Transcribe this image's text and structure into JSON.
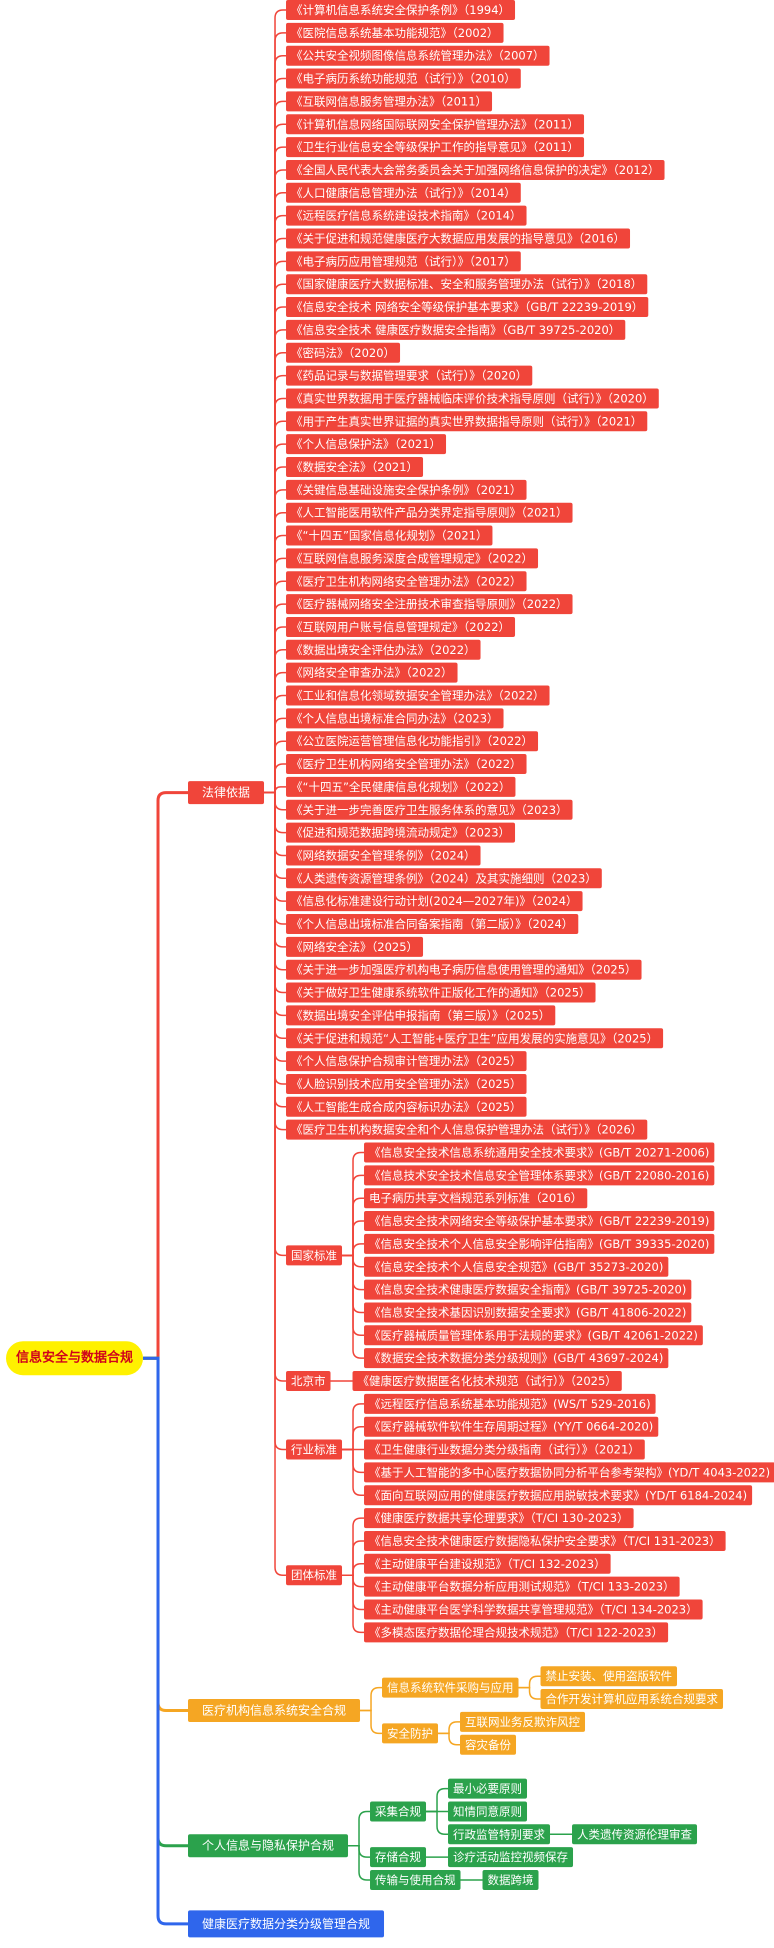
{
  "root": {
    "label": "信息安全与数据合规",
    "children": [
      {
        "label": "法律依据",
        "children": [
          {
            "label": "《计算机信息系统安全保护条例》（1994）"
          },
          {
            "label": "《医院信息系统基本功能规范》（2002）"
          },
          {
            "label": "《公共安全视频图像信息系统管理办法》（2007）"
          },
          {
            "label": "《电子病历系统功能规范（试行）》（2010）"
          },
          {
            "label": "《互联网信息服务管理办法》（2011）"
          },
          {
            "label": "《计算机信息网络国际联网安全保护管理办法》（2011）"
          },
          {
            "label": "《卫生行业信息安全等级保护工作的指导意见》（2011）"
          },
          {
            "label": "《全国人民代表大会常务委员会关于加强网络信息保护的决定》（2012）"
          },
          {
            "label": "《人口健康信息管理办法（试行）》（2014）"
          },
          {
            "label": "《远程医疗信息系统建设技术指南》（2014）"
          },
          {
            "label": "《关于促进和规范健康医疗大数据应用发展的指导意见》（2016）"
          },
          {
            "label": "《电子病历应用管理规范（试行）》（2017）"
          },
          {
            "label": "《国家健康医疗大数据标准、安全和服务管理办法（试行）》（2018）"
          },
          {
            "label": "《信息安全技术 网络安全等级保护基本要求》（GB/T 22239-2019）"
          },
          {
            "label": "《信息安全技术 健康医疗数据安全指南》（GB/T 39725-2020）"
          },
          {
            "label": "《密码法》（2020）"
          },
          {
            "label": "《药品记录与数据管理要求（试行）》（2020）"
          },
          {
            "label": "《真实世界数据用于医疗器械临床评价技术指导原则（试行）》（2020）"
          },
          {
            "label": "《用于产生真实世界证据的真实世界数据指导原则（试行）》（2021）"
          },
          {
            "label": "《个人信息保护法》（2021）"
          },
          {
            "label": "《数据安全法》（2021）"
          },
          {
            "label": "《关键信息基础设施安全保护条例》（2021）"
          },
          {
            "label": "《人工智能医用软件产品分类界定指导原则》（2021）"
          },
          {
            "label": "《“十四五”国家信息化规划》（2021）"
          },
          {
            "label": "《互联网信息服务深度合成管理规定》（2022）"
          },
          {
            "label": "《医疗卫生机构网络安全管理办法》（2022）"
          },
          {
            "label": "《医疗器械网络安全注册技术审查指导原则》（2022）"
          },
          {
            "label": "《互联网用户账号信息管理规定》（2022）"
          },
          {
            "label": "《数据出境安全评估办法》（2022）"
          },
          {
            "label": "《网络安全审查办法》（2022）"
          },
          {
            "label": "《工业和信息化领域数据安全管理办法》（2022）"
          },
          {
            "label": "《个人信息出境标准合同办法》（2023）"
          },
          {
            "label": "《公立医院运营管理信息化功能指引》（2022）"
          },
          {
            "label": "《医疗卫生机构网络安全管理办法》（2022）"
          },
          {
            "label": "《“十四五”全民健康信息化规划》（2022）"
          },
          {
            "label": "《关于进一步完善医疗卫生服务体系的意见》（2023）"
          },
          {
            "label": "《促进和规范数据跨境流动规定》（2023）"
          },
          {
            "label": "《网络数据安全管理条例》（2024）"
          },
          {
            "label": "《人类遗传资源管理条例》（2024）及其实施细则（2023）"
          },
          {
            "label": "《信息化标准建设行动计划(2024—2027年)》（2024）"
          },
          {
            "label": "《个人信息出境标准合同备案指南（第二版）》（2024）"
          },
          {
            "label": "《网络安全法》（2025）"
          },
          {
            "label": "《关于进一步加强医疗机构电子病历信息使用管理的通知》（2025）"
          },
          {
            "label": "《关于做好卫生健康系统软件正版化工作的通知》（2025）"
          },
          {
            "label": "《数据出境安全评估申报指南（第三版）》（2025）"
          },
          {
            "label": "《关于促进和规范“人工智能+医疗卫生”应用发展的实施意见》（2025）"
          },
          {
            "label": "《个人信息保护合规审计管理办法》（2025）"
          },
          {
            "label": "《人脸识别技术应用安全管理办法》（2025）"
          },
          {
            "label": "《人工智能生成合成内容标识办法》（2025）"
          },
          {
            "label": "《医疗卫生机构数据安全和个人信息保护管理办法（试行）》（2026）"
          },
          {
            "label": "国家标准",
            "children": [
              {
                "label": "《信息安全技术信息系统通用安全技术要求》(GB/T 20271-2006)"
              },
              {
                "label": "《信息技术安全技术信息安全管理体系要求》(GB/T 22080-2016)"
              },
              {
                "label": "电子病历共享文档规范系列标准（2016）"
              },
              {
                "label": "《信息安全技术网络安全等级保护基本要求》(GB/T 22239-2019)"
              },
              {
                "label": "《信息安全技术个人信息安全影响评估指南》(GB/T 39335-2020)"
              },
              {
                "label": "《信息安全技术个人信息安全规范》(GB/T 35273-2020)"
              },
              {
                "label": "《信息安全技术健康医疗数据安全指南》(GB/T 39725-2020)"
              },
              {
                "label": "《信息安全技术基因识别数据安全要求》(GB/T 41806-2022)"
              },
              {
                "label": "《医疗器械质量管理体系用于法规的要求》(GB/T 42061-2022)"
              },
              {
                "label": "《数据安全技术数据分类分级规则》(GB/T 43697-2024)"
              }
            ]
          },
          {
            "label": "北京市",
            "children": [
              {
                "label": "《健康医疗数据匿名化技术规范（试行）》（2025）"
              }
            ]
          },
          {
            "label": "行业标准",
            "children": [
              {
                "label": "《远程医疗信息系统基本功能规范》(WS/T 529-2016)"
              },
              {
                "label": "《医疗器械软件软件生存周期过程》(YY/T 0664-2020)"
              },
              {
                "label": "《卫生健康行业数据分类分级指南（试行）》（2021）"
              },
              {
                "label": "《基于人工智能的多中心医疗数据协同分析平台参考架构》(YD/T 4043-2022)"
              },
              {
                "label": "《面向互联网应用的健康医疗数据应用脱敏技术要求》(YD/T 6184-2024)"
              }
            ]
          },
          {
            "label": "团体标准",
            "children": [
              {
                "label": "《健康医疗数据共享伦理要求》（T/CI 130-2023）"
              },
              {
                "label": "《信息安全技术健康医疗数据隐私保护安全要求》（T/CI 131-2023）"
              },
              {
                "label": "《主动健康平台建设规范》（T/CI 132-2023）"
              },
              {
                "label": "《主动健康平台数据分析应用测试规范》（T/CI 133-2023）"
              },
              {
                "label": "《主动健康平台医学科学数据共享管理规范》（T/CI 134-2023）"
              },
              {
                "label": "《多模态医疗数据伦理合规技术规范》（T/CI 122-2023）"
              }
            ]
          }
        ]
      },
      {
        "label": "医疗机构信息系统安全合规",
        "children": [
          {
            "label": "信息系统软件采购与应用",
            "children": [
              {
                "label": "禁止安装、使用盗版软件"
              },
              {
                "label": "合作开发计算机应用系统合规要求"
              }
            ]
          },
          {
            "label": "安全防护",
            "children": [
              {
                "label": "互联网业务反欺诈风控"
              },
              {
                "label": "容灾备份"
              }
            ]
          }
        ]
      },
      {
        "label": "个人信息与隐私保护合规",
        "children": [
          {
            "label": "采集合规",
            "children": [
              {
                "label": "最小必要原则"
              },
              {
                "label": "知情同意原则"
              },
              {
                "label": "行政监管特别要求",
                "children": [
                  {
                    "label": "人类遗传资源伦理审查"
                  }
                ]
              }
            ]
          },
          {
            "label": "存储合规",
            "children": [
              {
                "label": "诊疗活动监控视频保存"
              }
            ]
          },
          {
            "label": "传输与使用合规",
            "children": [
              {
                "label": "数据跨境"
              }
            ]
          }
        ]
      },
      {
        "label": "健康医疗数据分类分级管理合规"
      }
    ]
  }
}
